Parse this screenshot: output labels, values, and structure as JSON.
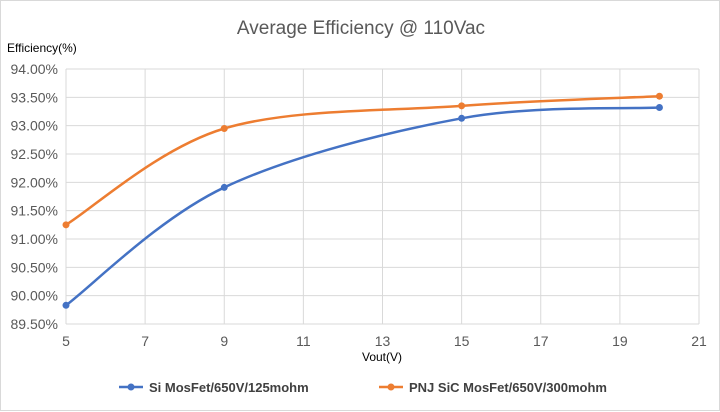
{
  "chart_data": {
    "type": "line",
    "title": "Average Efficiency @ 110Vac",
    "ylabel": "Efficiency(%)",
    "xlabel": "Vout(V)",
    "xlim": [
      5,
      21
    ],
    "ylim": [
      89.5,
      94.0
    ],
    "xticks": [
      "5",
      "7",
      "9",
      "11",
      "13",
      "15",
      "17",
      "19",
      "21"
    ],
    "yticks": [
      "89.50%",
      "90.00%",
      "90.50%",
      "91.00%",
      "91.50%",
      "92.00%",
      "92.50%",
      "93.00%",
      "93.50%",
      "94.00%"
    ],
    "grid": true,
    "smooth": true,
    "legend_position": "bottom",
    "series": [
      {
        "name": "Si MosFet/650V/125mohm",
        "color": "#4472c4",
        "x": [
          5,
          9,
          15,
          20
        ],
        "y": [
          89.83,
          91.91,
          93.13,
          93.32
        ]
      },
      {
        "name": "PNJ SiC MosFet/650V/300mohm",
        "color": "#ed7d31",
        "x": [
          5,
          9,
          15,
          20
        ],
        "y": [
          91.25,
          92.95,
          93.35,
          93.52
        ]
      }
    ]
  }
}
